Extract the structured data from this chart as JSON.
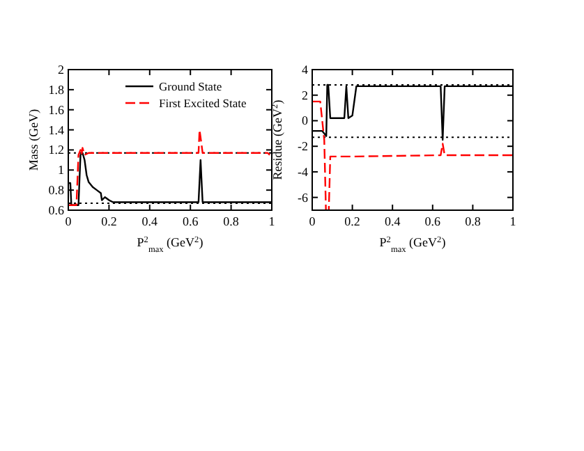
{
  "chart_data": [
    {
      "type": "line",
      "xlabel": "P$^{2}$$_{max}$ (GeV$^{2}$)",
      "ylabel": "Mass (GeV)",
      "xlim": [
        0,
        1
      ],
      "ylim": [
        0.6,
        2
      ],
      "xticks": [
        0,
        0.2,
        0.4,
        0.6,
        0.8,
        1
      ],
      "yticks": [
        0.6,
        0.8,
        1,
        1.2,
        1.4,
        1.6,
        1.8,
        2
      ],
      "grid": false,
      "legend": "top right",
      "ref_lines": [
        {
          "axis": "y",
          "value": 1.17,
          "line_style": "dotted",
          "color": "#000000"
        },
        {
          "axis": "y",
          "value": 0.67,
          "line_style": "dotted",
          "color": "#000000"
        }
      ],
      "series": [
        {
          "name": "Ground State",
          "color": "#000000",
          "line_style": "solid",
          "x": [
            0,
            0.01,
            0.015,
            0.05,
            0.06,
            0.07,
            0.08,
            0.09,
            0.1,
            0.12,
            0.14,
            0.16,
            0.165,
            0.18,
            0.2,
            0.22,
            0.64,
            0.65,
            0.66,
            1
          ],
          "values": [
            0.87,
            0.87,
            0.65,
            0.65,
            1.15,
            1.17,
            1.1,
            0.95,
            0.88,
            0.83,
            0.8,
            0.77,
            0.7,
            0.73,
            0.7,
            0.68,
            0.68,
            1.1,
            0.68,
            0.68
          ]
        },
        {
          "name": "First Excited State",
          "color": "#ff0000",
          "line_style": "dashed",
          "x": [
            0,
            0.04,
            0.05,
            0.06,
            0.065,
            0.07,
            0.08,
            0.1,
            0.64,
            0.645,
            0.655,
            0.66,
            0.98,
            0.99
          ],
          "values": [
            0.65,
            0.65,
            1.15,
            1.2,
            1.15,
            1.22,
            1.15,
            1.17,
            1.17,
            1.4,
            1.25,
            1.17,
            1.17,
            1.15
          ]
        }
      ]
    },
    {
      "type": "line",
      "xlabel": "P$^{2}$$_{max}$ (GeV$^{2}$)",
      "ylabel": "Residue (GeV$^{2}$)",
      "xlim": [
        0,
        1
      ],
      "ylim": [
        -7,
        4
      ],
      "xticks": [
        0,
        0.2,
        0.4,
        0.6,
        0.8,
        1
      ],
      "yticks": [
        -6,
        -4,
        -2,
        0,
        2,
        4
      ],
      "grid": false,
      "ref_lines": [
        {
          "axis": "y",
          "value": 2.8,
          "line_style": "dotted",
          "color": "#000000"
        },
        {
          "axis": "y",
          "value": -1.3,
          "line_style": "dotted",
          "color": "#000000"
        }
      ],
      "series": [
        {
          "color": "#000000",
          "line_style": "solid",
          "x": [
            0,
            0.05,
            0.06,
            0.07,
            0.075,
            0.08,
            0.09,
            0.16,
            0.17,
            0.18,
            0.2,
            0.22,
            0.64,
            0.65,
            0.66,
            1
          ],
          "values": [
            -0.8,
            -0.8,
            -1,
            -1.2,
            2.8,
            2.8,
            0.2,
            0.2,
            2.7,
            0.2,
            0.4,
            2.7,
            2.7,
            -1.5,
            2.7,
            2.7
          ]
        },
        {
          "color": "#ff0000",
          "line_style": "dashed",
          "x": [
            0,
            0.04,
            0.06,
            0.075,
            0.09,
            0.2,
            0.64,
            0.65,
            0.66,
            1
          ],
          "values": [
            1.5,
            1.5,
            -1.5,
            null,
            -2.8,
            -2.8,
            -2.7,
            -1.8,
            -2.7,
            -2.7
          ]
        }
      ]
    }
  ]
}
